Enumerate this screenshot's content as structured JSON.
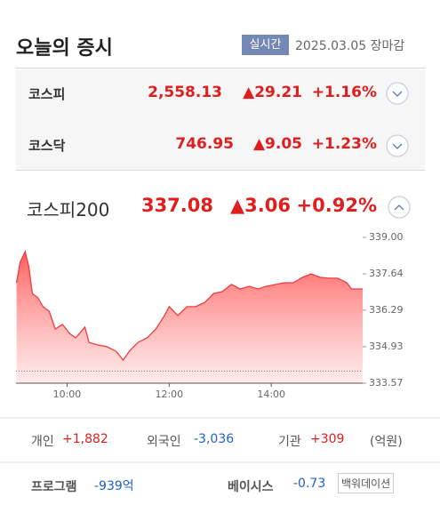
{
  "header": {
    "title": "오늘의 증시",
    "badge": "실시간",
    "date": "2025.03.05 장마감"
  },
  "indices": [
    {
      "name": "코스피",
      "value": "2,558.13",
      "change": "▲29.21",
      "rate": "+1.16%"
    },
    {
      "name": "코스닥",
      "value": "746.95",
      "change": "▲9.05",
      "rate": "+1.23%"
    },
    {
      "name": "코스피200",
      "value": "337.08",
      "change": "▲3.06",
      "rate": "+0.92%"
    }
  ],
  "chart_data": {
    "type": "line",
    "color": "#f03c3c",
    "x": [
      9.01,
      9.08,
      9.18,
      9.25,
      9.32,
      9.43,
      9.53,
      9.65,
      9.77,
      9.91,
      10.05,
      10.17,
      10.35,
      10.43,
      10.61,
      10.78,
      10.96,
      11.1,
      11.22,
      11.39,
      11.57,
      11.74,
      11.91,
      12.0,
      12.17,
      12.35,
      12.52,
      12.7,
      12.87,
      13.04,
      13.22,
      13.39,
      13.57,
      13.74,
      13.91,
      14.09,
      14.26,
      14.43,
      14.61,
      14.78,
      14.96,
      15.13,
      15.3,
      15.48,
      15.57,
      15.79
    ],
    "values": [
      337.31,
      338.07,
      338.47,
      337.91,
      336.91,
      336.75,
      336.42,
      336.25,
      335.59,
      335.76,
      335.42,
      335.26,
      335.66,
      335.09,
      334.99,
      334.93,
      334.76,
      334.43,
      334.76,
      335.09,
      335.26,
      335.59,
      336.09,
      336.42,
      336.09,
      336.42,
      336.42,
      336.58,
      336.91,
      336.98,
      337.25,
      337.08,
      337.18,
      337.08,
      337.18,
      337.25,
      337.31,
      337.31,
      337.51,
      337.64,
      337.51,
      337.48,
      337.48,
      337.31,
      337.08,
      337.08
    ],
    "reference": 334.02,
    "xlim": [
      9,
      15.79
    ],
    "ylim": [
      333.57,
      339.0
    ],
    "xticks": [
      {
        "value": 10,
        "label": "10:00"
      },
      {
        "value": 12,
        "label": "12:00"
      },
      {
        "value": 14,
        "label": "14:00"
      }
    ],
    "yticks": [
      {
        "value": 339.0,
        "label": "339.00"
      },
      337.64,
      336.29,
      334.93,
      333.57
    ]
  },
  "investors": [
    {
      "label": "개인",
      "value": "+1,882"
    },
    {
      "label": "외국인",
      "value": "-3,036"
    },
    {
      "label": "기관",
      "value": "+309"
    }
  ],
  "investors_unit": "(억원)",
  "program": {
    "label": "프로그램",
    "value": "-939억"
  },
  "basis": {
    "label": "베이시스",
    "value": "-0.73",
    "status": "백워데이션"
  }
}
